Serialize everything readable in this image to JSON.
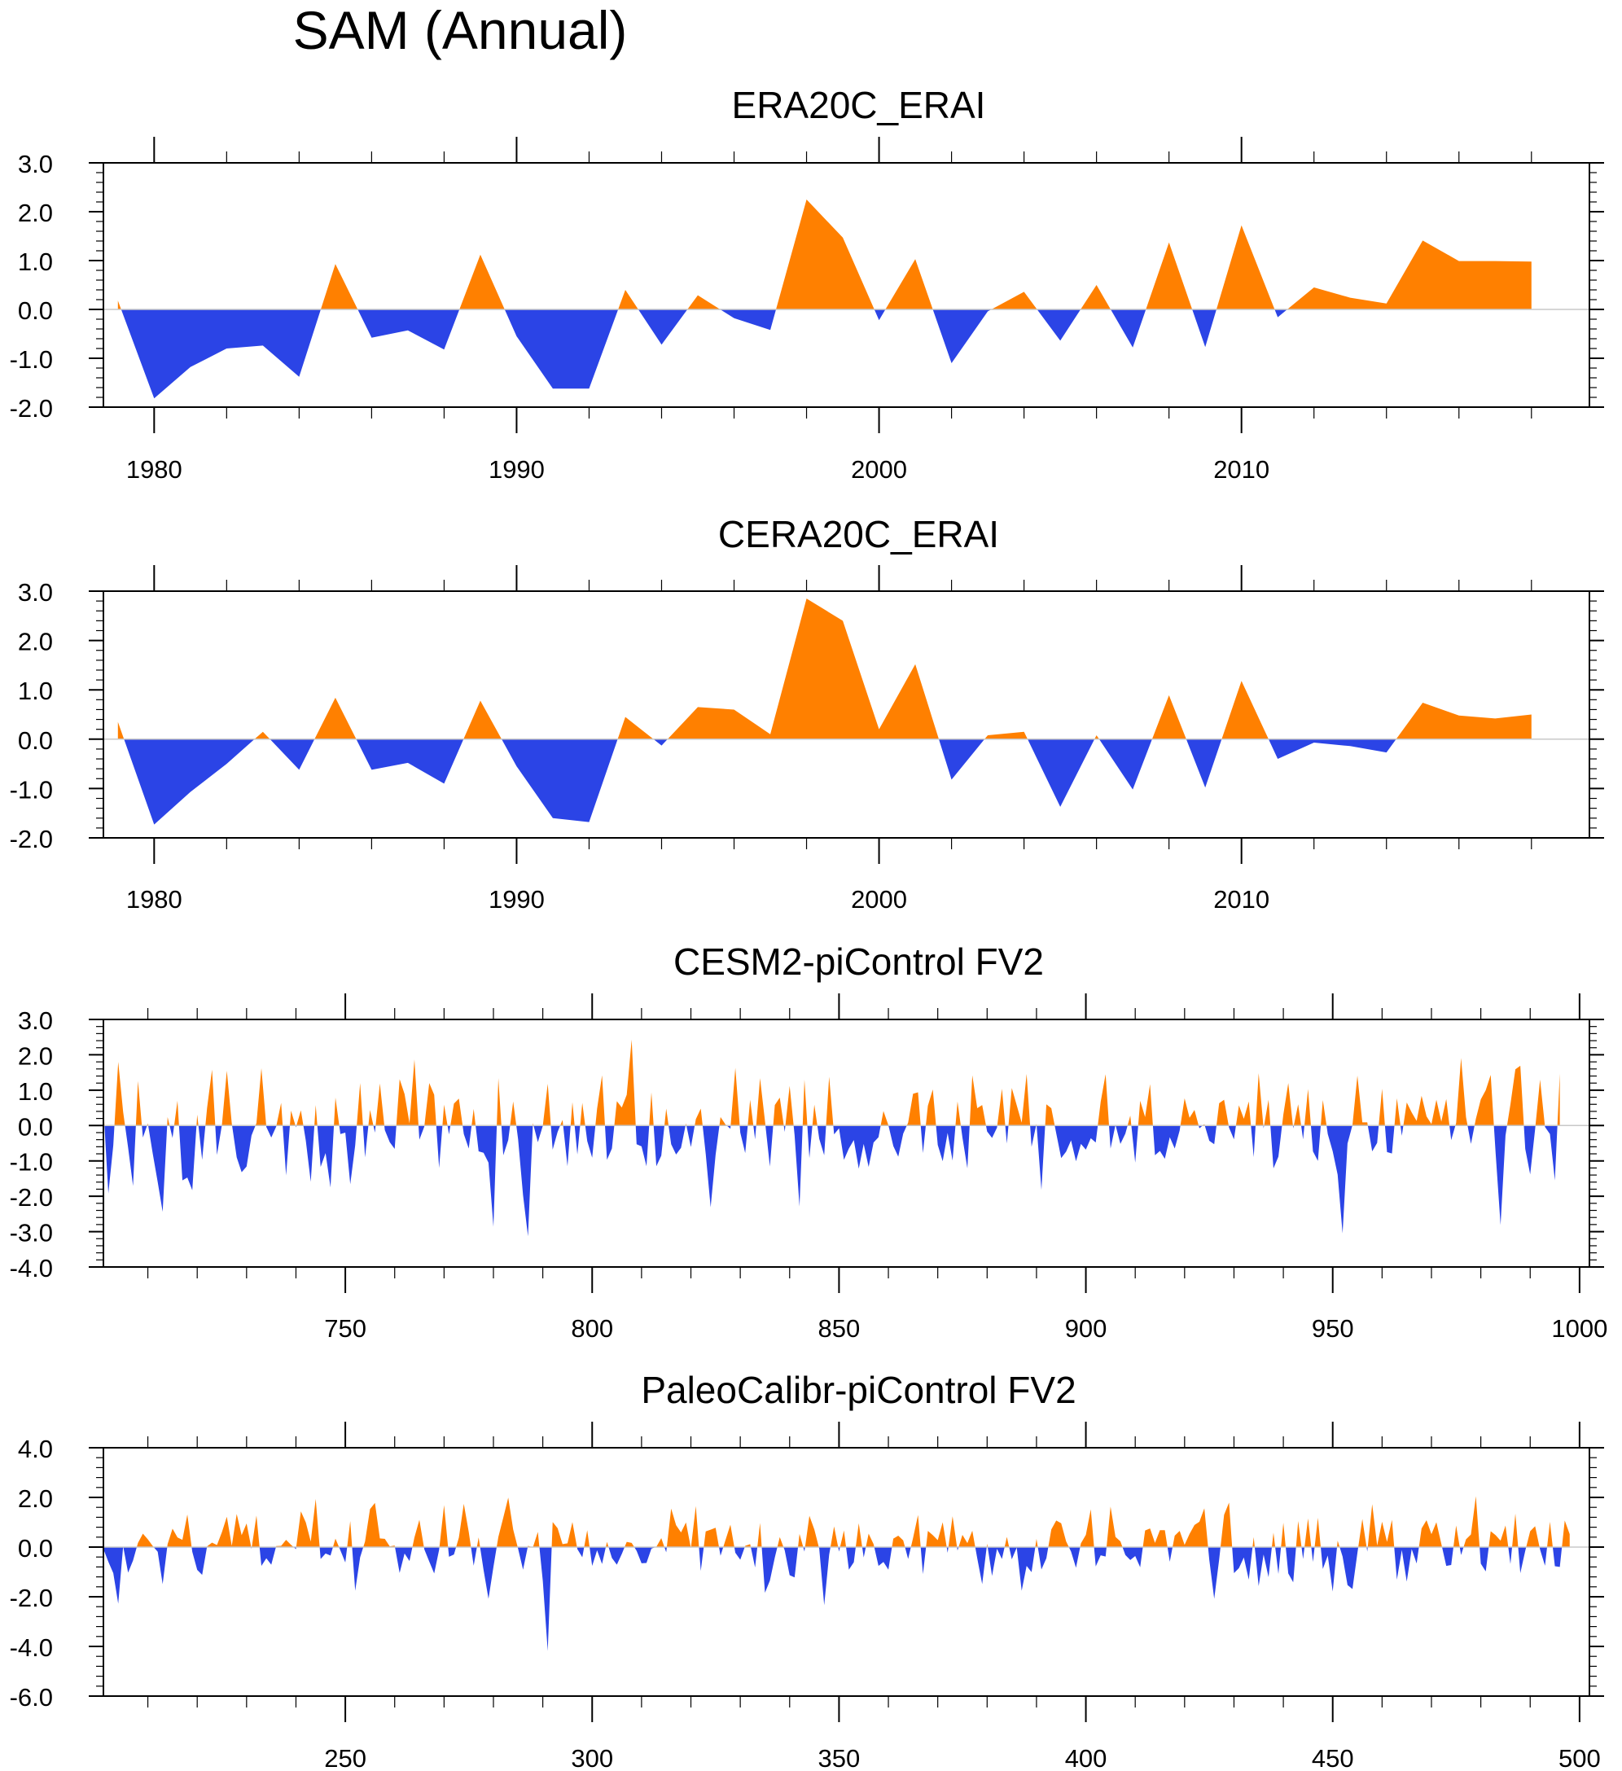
{
  "figure": {
    "title": "SAM (Annual)",
    "positive_color": "#ff8000",
    "negative_color": "#2b44e6",
    "frame_color": "#000000",
    "zero_line_color": "#c8c8c8"
  },
  "chart_data": [
    {
      "type": "area",
      "title": "ERA20C_ERAI",
      "xlabel": "",
      "ylabel": "",
      "xlim": [
        1978.6,
        2019.6
      ],
      "ylim": [
        -2.0,
        3.0
      ],
      "xticks": [
        1980,
        1990,
        2000,
        2010
      ],
      "xtick_labels": [
        "1980",
        "1990",
        "2000",
        "2010"
      ],
      "yticks": [
        -2.0,
        -1.0,
        0.0,
        1.0,
        2.0,
        3.0
      ],
      "ytick_labels": [
        "-2.0",
        "-1.0",
        "0.0",
        "1.0",
        "2.0",
        "3.0"
      ],
      "x_minor_step": 2,
      "y_minor_step": 0.2,
      "x": [
        1979,
        1980,
        1981,
        1982,
        1983,
        1984,
        1985,
        1986,
        1987,
        1988,
        1989,
        1990,
        1991,
        1992,
        1993,
        1994,
        1995,
        1996,
        1997,
        1998,
        1999,
        2000,
        2001,
        2002,
        2003,
        2004,
        2005,
        2006,
        2007,
        2008,
        2009,
        2010,
        2011,
        2012,
        2013,
        2014,
        2015,
        2016,
        2017,
        2018
      ],
      "values": [
        0.18,
        -1.82,
        -1.18,
        -0.8,
        -0.74,
        -1.38,
        0.93,
        -0.58,
        -0.43,
        -0.82,
        1.12,
        -0.55,
        -1.62,
        -1.62,
        0.4,
        -0.72,
        0.29,
        -0.18,
        -0.42,
        2.25,
        1.47,
        -0.22,
        1.03,
        -1.1,
        -0.04,
        0.36,
        -0.64,
        0.5,
        -0.78,
        1.37,
        -0.77,
        1.72,
        -0.16,
        0.45,
        0.24,
        0.12,
        1.41,
        0.99,
        0.99,
        0.98
      ]
    },
    {
      "type": "area",
      "title": "CERA20C_ERAI",
      "xlabel": "",
      "ylabel": "",
      "xlim": [
        1978.6,
        2019.6
      ],
      "ylim": [
        -2.0,
        3.0
      ],
      "xticks": [
        1980,
        1990,
        2000,
        2010
      ],
      "xtick_labels": [
        "1980",
        "1990",
        "2000",
        "2010"
      ],
      "yticks": [
        -2.0,
        -1.0,
        0.0,
        1.0,
        2.0,
        3.0
      ],
      "ytick_labels": [
        "-2.0",
        "-1.0",
        "0.0",
        "1.0",
        "2.0",
        "3.0"
      ],
      "x_minor_step": 2,
      "y_minor_step": 0.2,
      "x": [
        1979,
        1980,
        1981,
        1982,
        1983,
        1984,
        1985,
        1986,
        1987,
        1988,
        1989,
        1990,
        1991,
        1992,
        1993,
        1994,
        1995,
        1996,
        1997,
        1998,
        1999,
        2000,
        2001,
        2002,
        2003,
        2004,
        2005,
        2006,
        2007,
        2008,
        2009,
        2010,
        2011,
        2012,
        2013,
        2014,
        2015,
        2016,
        2017,
        2018
      ],
      "values": [
        0.35,
        -1.73,
        -1.07,
        -0.5,
        0.15,
        -0.62,
        0.84,
        -0.62,
        -0.48,
        -0.9,
        0.78,
        -0.55,
        -1.6,
        -1.68,
        0.45,
        -0.13,
        0.65,
        0.6,
        0.1,
        2.85,
        2.4,
        0.2,
        1.52,
        -0.82,
        0.08,
        0.15,
        -1.37,
        0.08,
        -1.02,
        0.89,
        -0.98,
        1.18,
        -0.4,
        -0.07,
        -0.14,
        -0.27,
        0.74,
        0.48,
        0.42,
        0.5
      ]
    },
    {
      "type": "area",
      "title": "CESM2-piControl FV2",
      "xlabel": "",
      "ylabel": "",
      "xlim": [
        701,
        1002
      ],
      "ylim": [
        -4.0,
        3.0
      ],
      "xticks": [
        750,
        800,
        850,
        900,
        950,
        1000
      ],
      "xtick_labels": [
        "750",
        "800",
        "850",
        "900",
        "950",
        "1000"
      ],
      "yticks": [
        -4.0,
        -3.0,
        -2.0,
        -1.0,
        0.0,
        1.0,
        2.0,
        3.0
      ],
      "ytick_labels": [
        "-4.0",
        "-3.0",
        "-2.0",
        "-1.0",
        "0.0",
        "1.0",
        "2.0",
        "3.0"
      ],
      "x_minor_step": 10,
      "y_minor_step": 0.2,
      "x_start": 701,
      "x_step": 1,
      "values": [
        0.52,
        -1.92,
        -0.56,
        1.8,
        0.38,
        -0.62,
        -1.71,
        1.26,
        -0.34,
        0.06,
        -0.8,
        -1.6,
        -2.44,
        0.24,
        -0.35,
        0.7,
        -1.55,
        -1.47,
        -1.83,
        0.31,
        -0.97,
        0.5,
        1.58,
        -0.83,
        0.01,
        1.55,
        0.06,
        -0.9,
        -1.32,
        -1.16,
        -0.28,
        0.07,
        1.62,
        -0.04,
        -0.34,
        -0.03,
        0.64,
        -1.41,
        0.42,
        -0.05,
        0.43,
        -0.43,
        -1.59,
        0.58,
        -1.17,
        -0.78,
        -1.75,
        0.79,
        -0.24,
        -0.2,
        -1.66,
        -0.56,
        1.2,
        -0.9,
        0.44,
        -0.2,
        1.19,
        -0.13,
        -0.47,
        -0.66,
        1.31,
        0.89,
        0.06,
        1.87,
        -0.4,
        -0.03,
        1.2,
        0.87,
        -1.2,
        0.59,
        -0.25,
        0.62,
        0.76,
        -0.24,
        -0.65,
        0.47,
        -0.73,
        -0.77,
        -1.05,
        -2.86,
        1.34,
        -0.84,
        -0.41,
        0.68,
        -0.39,
        -1.97,
        -3.13,
        0.07,
        -0.47,
        -0.01,
        1.18,
        -0.68,
        -0.18,
        0.16,
        -1.15,
        0.66,
        -0.82,
        0.64,
        -0.44,
        -0.91,
        0.48,
        1.42,
        -0.97,
        -0.65,
        0.69,
        0.51,
        0.87,
        2.43,
        -0.53,
        -0.59,
        -1.15,
        0.94,
        -1.15,
        -0.85,
        0.48,
        -0.53,
        -0.82,
        -0.63,
        0.06,
        -0.61,
        0.18,
        0.48,
        -0.8,
        -2.31,
        -0.83,
        0.24,
        0.03,
        -0.09,
        1.63,
        -0.2,
        -0.78,
        0.73,
        -0.39,
        1.34,
        0.13,
        -1.16,
        0.58,
        0.79,
        -0.18,
        1.12,
        -0.27,
        -2.29,
        1.3,
        -0.92,
        0.59,
        -0.38,
        -0.84,
        1.38,
        -0.25,
        -0.08,
        -0.97,
        -0.65,
        -0.41,
        -1.22,
        -0.52,
        -1.17,
        -0.48,
        -0.33,
        0.41,
        0.01,
        -0.58,
        -0.88,
        -0.23,
        0.08,
        0.9,
        0.94,
        -0.78,
        0.56,
        1.02,
        -0.55,
        -1.01,
        -0.21,
        -0.99,
        0.68,
        -0.34,
        -1.21,
        1.42,
        0.49,
        0.58,
        -0.17,
        -0.35,
        -0.06,
        1.04,
        -0.51,
        1.06,
        0.57,
        0.08,
        1.46,
        -0.6,
        0.05,
        -1.82,
        0.6,
        0.49,
        -0.22,
        -0.92,
        -0.74,
        -0.42,
        -1.01,
        -0.52,
        -0.68,
        -0.36,
        -0.48,
        0.67,
        1.45,
        -0.65,
        0.02,
        -0.52,
        -0.23,
        0.28,
        -1.05,
        0.7,
        0.24,
        1.17,
        -0.84,
        -0.72,
        -0.94,
        -0.33,
        -0.65,
        -0.14,
        0.77,
        0.22,
        0.44,
        -0.08,
        0.04,
        -0.43,
        -0.53,
        0.63,
        0.73,
        -0.06,
        -0.39,
        0.57,
        0.19,
        0.68,
        -0.89,
        1.48,
        -0.08,
        0.73,
        -1.21,
        -0.88,
        0.31,
        1.2,
        -0.08,
        0.6,
        -0.39,
        1.03,
        -0.73,
        -1.0,
        0.72,
        -0.24,
        -0.73,
        -1.39,
        -3.05,
        -0.51,
        0.01,
        1.41,
        0.09,
        0.09,
        -0.73,
        -0.49,
        1.04,
        -0.75,
        -0.79,
        0.77,
        -0.29,
        0.65,
        0.37,
        0.13,
        0.84,
        0.26,
        0.04,
        0.73,
        0.11,
        0.75,
        -0.41,
        0.07,
        1.91,
        0.24,
        -0.52,
        0.19,
        0.74,
        1.0,
        1.43,
        -0.78,
        -2.81,
        -0.28,
        0.6,
        1.59,
        1.69,
        -0.66,
        -1.38,
        -0.1,
        1.3,
        -0.04,
        -0.24,
        -1.55,
        1.47
      ]
    },
    {
      "type": "area",
      "title": "PaleoCalibr-piControl FV2",
      "xlabel": "",
      "ylabel": "",
      "xlim": [
        201,
        502
      ],
      "ylim": [
        -6.0,
        4.0
      ],
      "xticks": [
        250,
        300,
        350,
        400,
        450,
        500
      ],
      "xtick_labels": [
        "250",
        "300",
        "350",
        "400",
        "450",
        "500"
      ],
      "yticks": [
        -6.0,
        -4.0,
        -2.0,
        0.0,
        2.0,
        4.0
      ],
      "ytick_labels": [
        "-6.0",
        "-4.0",
        "-2.0",
        "0.0",
        "2.0",
        "4.0"
      ],
      "x_minor_step": 10,
      "y_minor_step": 0.4,
      "x_start": 201,
      "x_step": 1,
      "values": [
        -0.08,
        -0.59,
        -1.05,
        -2.28,
        0.03,
        -1.03,
        -0.54,
        0.17,
        0.54,
        0.31,
        0.04,
        -0.19,
        -1.49,
        0.12,
        0.74,
        0.39,
        0.29,
        1.31,
        -0.19,
        -0.92,
        -1.12,
        0.03,
        0.18,
        0.08,
        0.6,
        1.22,
        0.05,
        1.33,
        0.48,
        0.95,
        -0.07,
        1.27,
        -0.76,
        -0.45,
        -0.71,
        0.04,
        0.05,
        0.29,
        0.09,
        -0.08,
        1.44,
        0.99,
        0.22,
        1.94,
        -0.48,
        -0.26,
        -0.34,
        0.34,
        -0.13,
        -0.62,
        1.05,
        -1.76,
        -0.41,
        0.23,
        1.53,
        1.78,
        0.35,
        0.33,
        0.03,
        0.06,
        -1.04,
        -0.26,
        -0.56,
        0.39,
        1.1,
        -0.09,
        -0.58,
        -1.06,
        -0.11,
        1.69,
        -0.39,
        -0.3,
        0.38,
        1.74,
        0.61,
        -0.75,
        0.39,
        -0.92,
        -2.08,
        -0.8,
        0.41,
        1.19,
        1.99,
        0.71,
        -0.07,
        -0.91,
        0.05,
        -0.01,
        0.61,
        -1.36,
        -4.18,
        1.01,
        0.76,
        0.12,
        0.15,
        1.01,
        -0.08,
        -0.41,
        0.68,
        -0.76,
        -0.13,
        -0.68,
        0.21,
        -0.44,
        -0.71,
        -0.28,
        0.21,
        0.17,
        -0.15,
        -0.65,
        -0.64,
        -0.06,
        0.01,
        0.36,
        -0.21,
        1.55,
        0.88,
        0.59,
        0.99,
        -0.04,
        1.65,
        -0.96,
        0.63,
        0.7,
        0.78,
        -0.35,
        0.28,
        0.9,
        -0.23,
        -0.51,
        0.05,
        0.12,
        -0.82,
        0.97,
        -1.84,
        -1.35,
        -0.42,
        0.4,
        -0.13,
        -1.13,
        -1.22,
        0.53,
        -0.18,
        1.26,
        0.71,
        -0.07,
        -2.34,
        -0.31,
        0.83,
        -0.18,
        0.67,
        -0.91,
        -0.61,
        0.96,
        -0.42,
        0.54,
        0.12,
        -0.76,
        -0.6,
        -0.91,
        0.34,
        0.46,
        0.27,
        -0.48,
        0.37,
        1.29,
        -1.09,
        0.65,
        0.48,
        0.28,
        1.0,
        -0.23,
        1.24,
        -0.14,
        0.49,
        0.16,
        0.66,
        -0.45,
        -1.49,
        0.14,
        -1.16,
        -0.07,
        -0.48,
        0.41,
        -0.49,
        -0.02,
        -1.76,
        -0.76,
        -1.01,
        0.33,
        -0.9,
        -0.45,
        0.71,
        1.07,
        0.96,
        0.23,
        -0.18,
        -0.83,
        0.15,
        0.49,
        1.52,
        -0.78,
        -0.33,
        -0.38,
        1.63,
        0.41,
        0.23,
        -0.32,
        -0.52,
        -0.36,
        -0.81,
        0.67,
        0.75,
        0.17,
        0.68,
        0.68,
        -0.59,
        0.46,
        0.65,
        0.09,
        0.53,
        0.89,
        1.02,
        1.56,
        -0.51,
        -2.08,
        -0.5,
        1.3,
        1.79,
        -1.05,
        -0.85,
        -0.42,
        -1.31,
        0.4,
        -1.57,
        -0.3,
        -1.21,
        0.58,
        -1.08,
        0.98,
        -1.06,
        -1.42,
        1.05,
        -0.48,
        1.15,
        -0.6,
        1.18,
        -0.88,
        -0.34,
        -1.79,
        0.26,
        -0.38,
        -1.53,
        -1.69,
        -0.24,
        1.13,
        -0.18,
        1.73,
        0.06,
        1.02,
        0.21,
        1.1,
        -1.31,
        -0.12,
        -1.39,
        -0.08,
        -0.66,
        0.75,
        1.08,
        0.52,
        1.0,
        0.13,
        -0.76,
        -0.72,
        0.87,
        -0.32,
        0.31,
        0.51,
        2.05,
        -0.67,
        -0.98,
        0.64,
        0.48,
        0.26,
        0.87,
        -0.68,
        1.35,
        -1.05,
        -0.15,
        0.64,
        0.84,
        -0.1,
        -0.75,
        1.02,
        -0.77,
        -0.8,
        1.07,
        0.52
      ]
    }
  ]
}
